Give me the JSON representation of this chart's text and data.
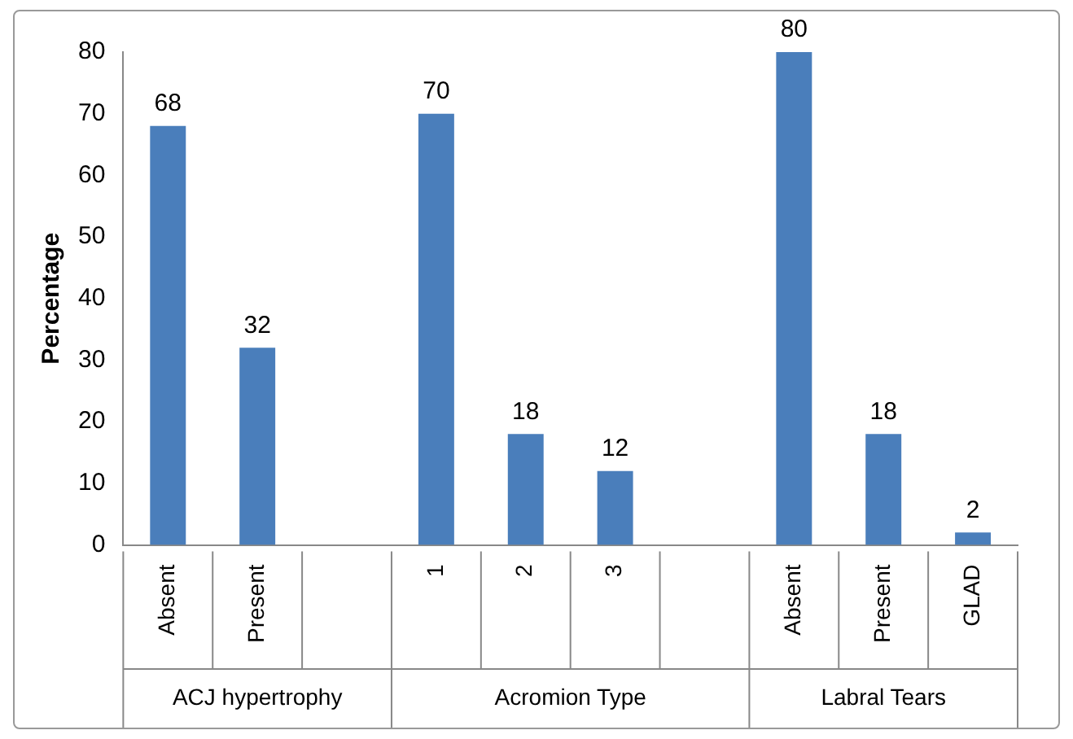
{
  "chart_data": {
    "type": "bar",
    "ylabel": "Percentage",
    "categories": [
      "Absent",
      "Present",
      null,
      "1",
      "2",
      "3",
      null,
      "Absent",
      "Present",
      "GLAD"
    ],
    "values": [
      68,
      32,
      null,
      70,
      18,
      12,
      null,
      80,
      18,
      2
    ],
    "color": "#4a7ebb",
    "ylim": [
      0,
      80
    ],
    "yticks": [
      0,
      10,
      20,
      30,
      40,
      50,
      60,
      70,
      80
    ],
    "grid": false,
    "legend": false,
    "data_labels": true,
    "annotations": [
      "ACJ hypertrophy",
      "Acromion Type",
      "Labral Tears"
    ]
  }
}
